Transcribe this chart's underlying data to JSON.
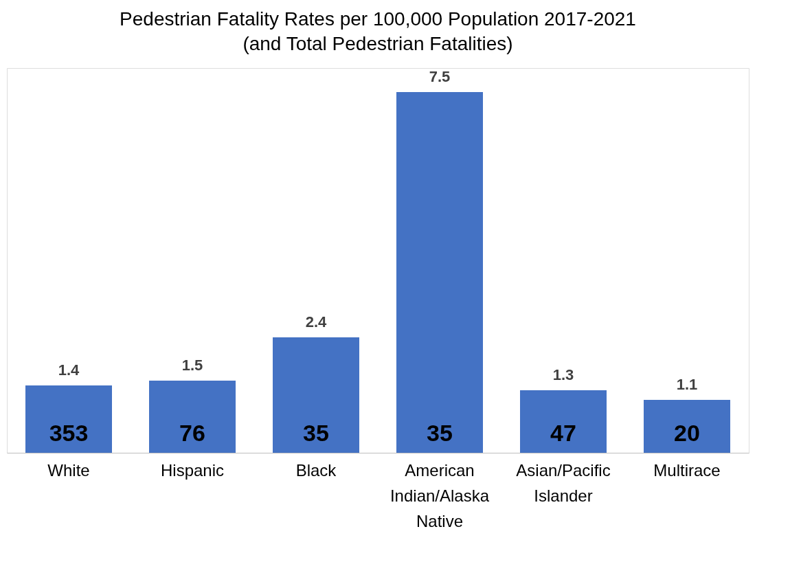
{
  "chart_data": {
    "type": "bar",
    "title": "Pedestrian Fatality Rates per 100,000 Population 2017-2021",
    "subtitle": "(and Total Pedestrian Fatalities)",
    "categories": [
      "White",
      "Hispanic",
      "Black",
      "American Indian/Alaska Native",
      "Asian/Pacific Islander",
      "Multirace"
    ],
    "values": [
      1.4,
      1.5,
      2.4,
      7.5,
      1.3,
      1.1
    ],
    "color": "#4472c4",
    "data_labels": true,
    "annotations": [
      "353",
      "76",
      "35",
      "35",
      "47",
      "20"
    ]
  }
}
